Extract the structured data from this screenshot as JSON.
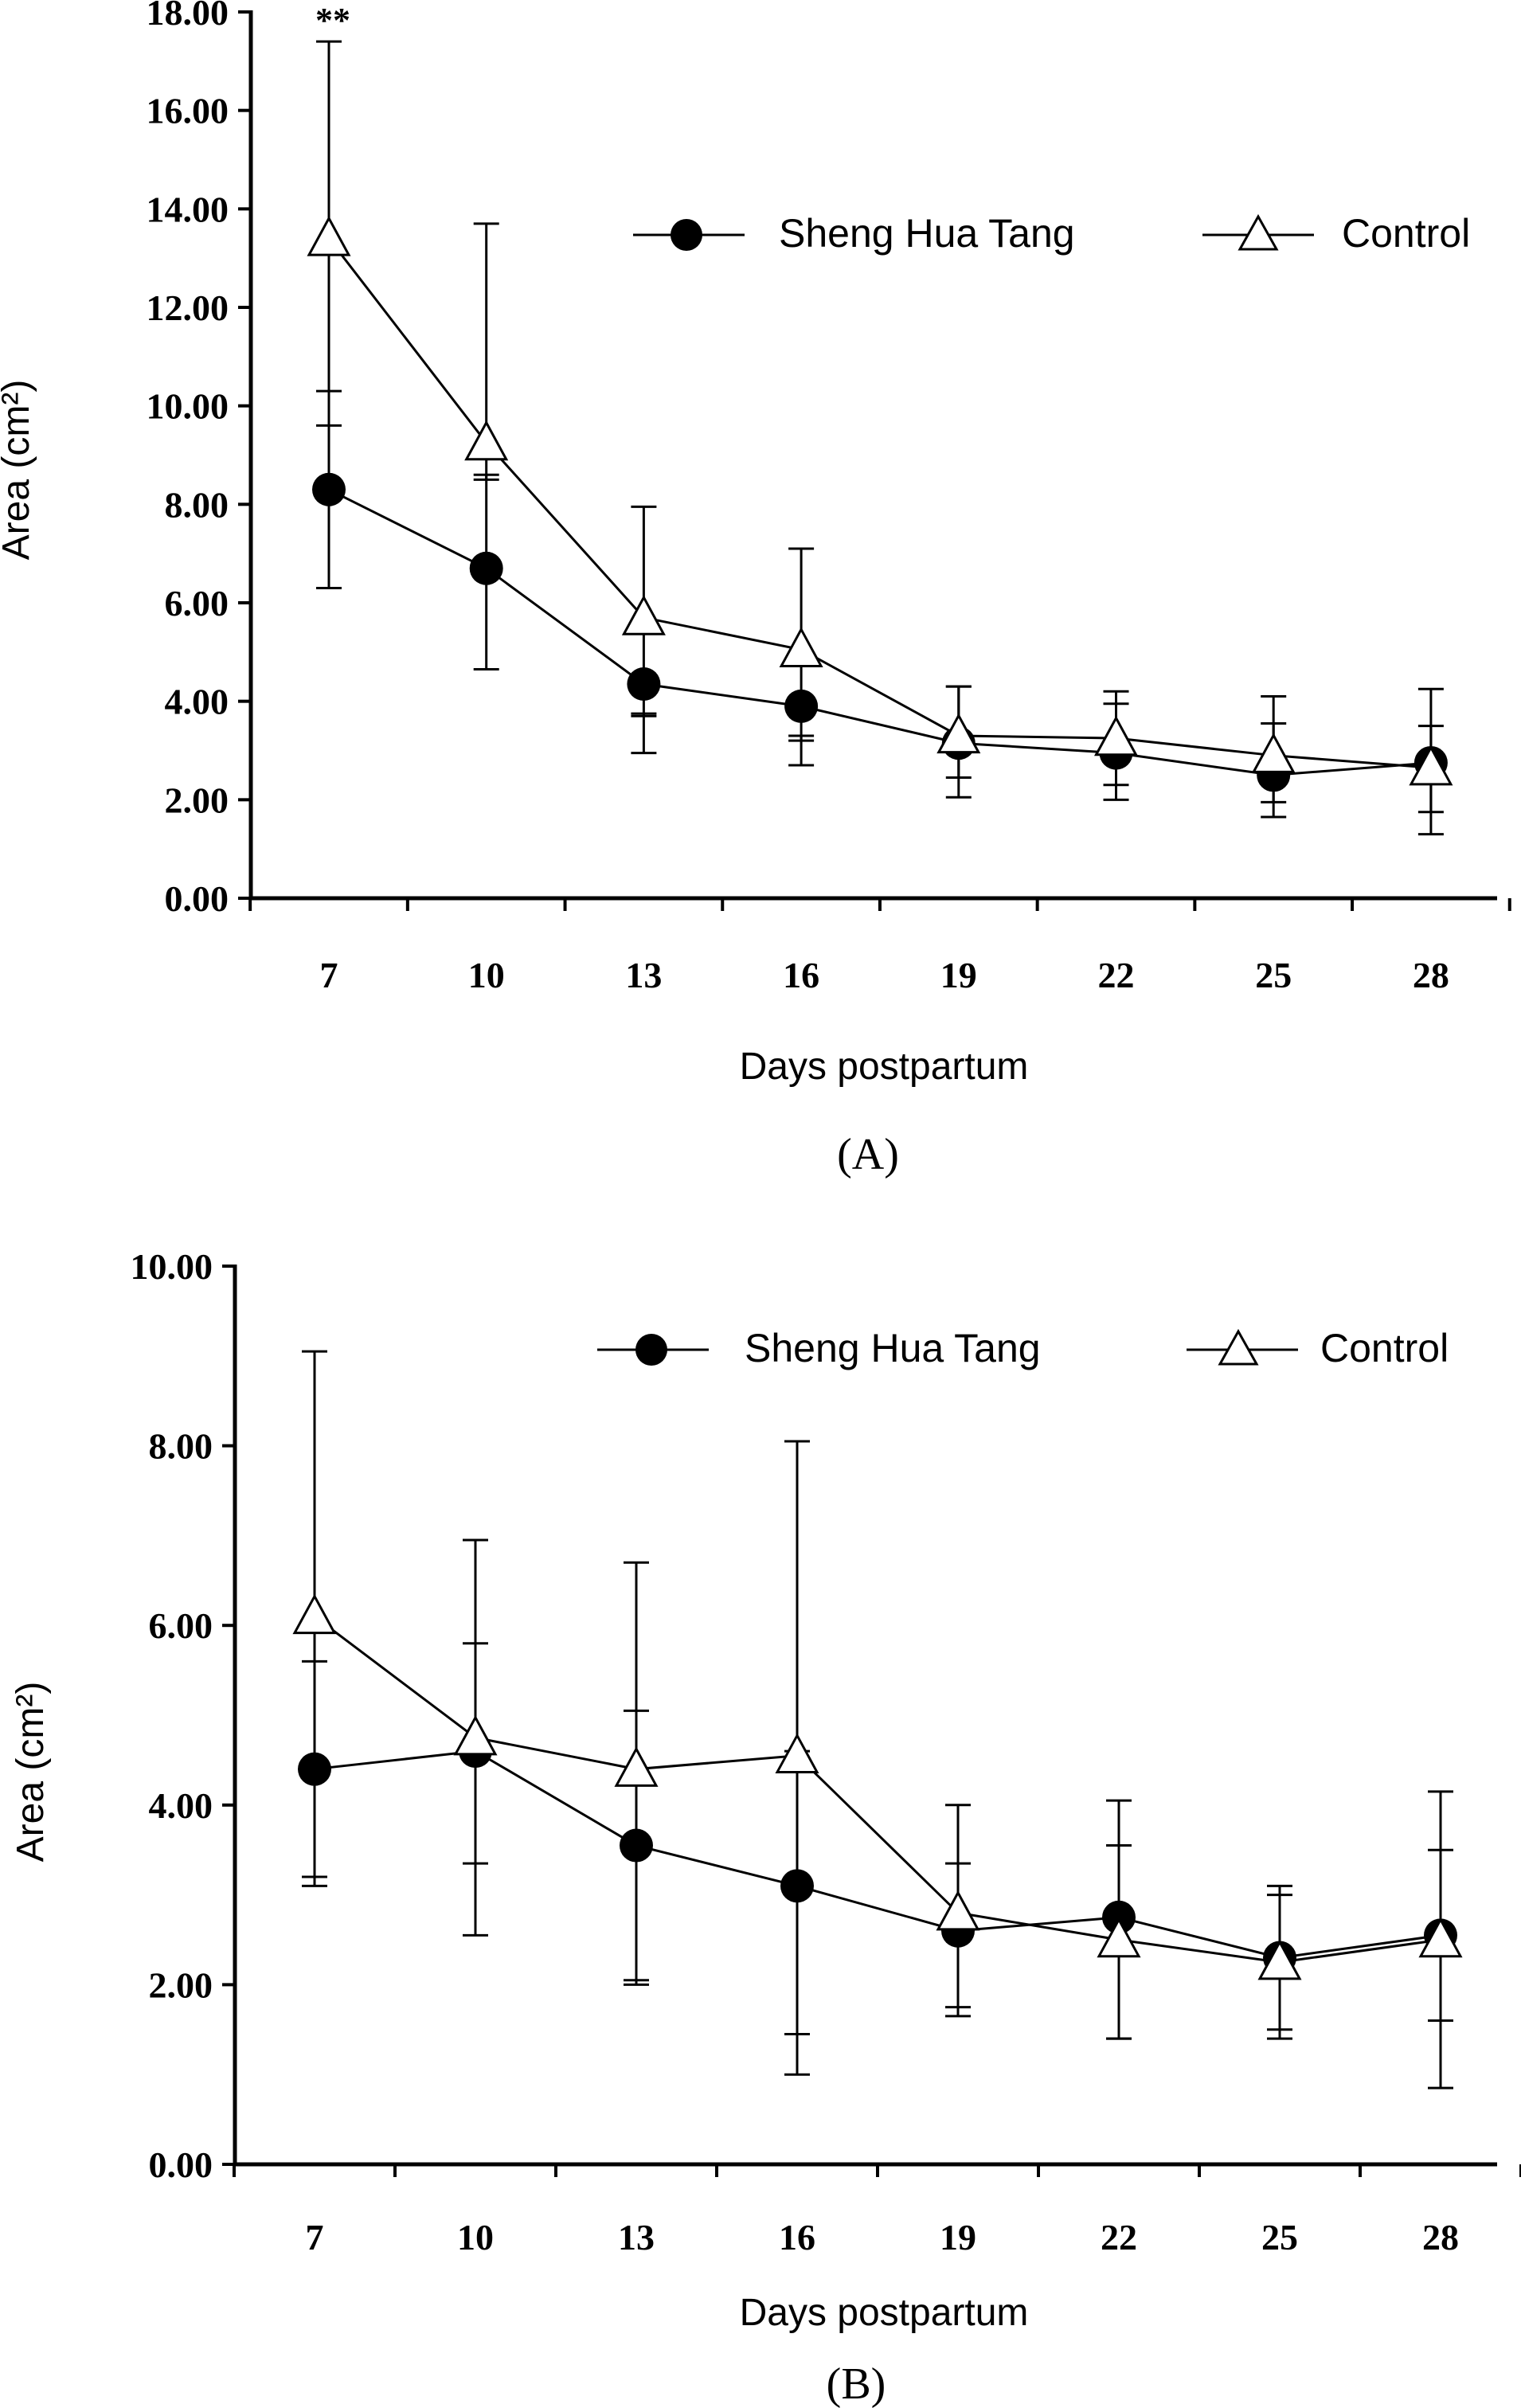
{
  "chart_data": [
    {
      "type": "line",
      "panel_label": "(A)",
      "xlabel": "Days postpartum",
      "ylabel": "Area (cm²)",
      "x": [
        7,
        10,
        13,
        16,
        19,
        22,
        25,
        28
      ],
      "y_ticks": [
        "0.00",
        "2.00",
        "4.00",
        "6.00",
        "8.00",
        "10.00",
        "12.00",
        "14.00",
        "16.00",
        "18.00"
      ],
      "ylim": [
        0,
        18
      ],
      "annotation": "**",
      "legend": [
        "Sheng Hua Tang",
        "Control"
      ],
      "series": [
        {
          "name": "Sheng Hua Tang",
          "marker": "filled-circle",
          "values": [
            8.3,
            6.7,
            4.35,
            3.9,
            3.15,
            2.95,
            2.5,
            2.75
          ],
          "err_low": [
            6.3,
            4.65,
            2.95,
            2.7,
            2.05,
            2.0,
            1.65,
            1.75
          ],
          "err_high": [
            10.3,
            8.6,
            3.75,
            3.3,
            4.3,
            3.95,
            3.55,
            3.5
          ]
        },
        {
          "name": "Control",
          "marker": "open-triangle",
          "values": [
            13.4,
            9.25,
            5.7,
            5.05,
            3.3,
            3.25,
            2.9,
            2.65
          ],
          "err_low": [
            9.6,
            8.5,
            3.7,
            3.2,
            2.45,
            2.3,
            1.95,
            1.3
          ],
          "err_high": [
            17.4,
            13.7,
            7.95,
            7.1,
            4.3,
            4.2,
            4.1,
            4.25
          ]
        }
      ]
    },
    {
      "type": "line",
      "panel_label": "(B)",
      "xlabel": "Days postpartum",
      "ylabel": "Area (cm²)",
      "x": [
        7,
        10,
        13,
        16,
        19,
        22,
        25,
        28
      ],
      "y_ticks": [
        "0.00",
        "2.00",
        "4.00",
        "6.00",
        "8.00",
        "10.00"
      ],
      "ylim": [
        0,
        10
      ],
      "legend": [
        "Sheng Hua Tang",
        "Control"
      ],
      "series": [
        {
          "name": "Sheng Hua Tang",
          "marker": "filled-circle",
          "values": [
            4.4,
            4.6,
            3.55,
            3.1,
            2.6,
            2.75,
            2.3,
            2.55
          ],
          "err_low": [
            3.2,
            3.35,
            2.05,
            1.45,
            1.65,
            1.4,
            1.5,
            1.6
          ],
          "err_high": [
            5.6,
            5.8,
            5.05,
            4.6,
            3.35,
            3.55,
            3.0,
            3.5
          ]
        },
        {
          "name": "Control",
          "marker": "open-triangle",
          "values": [
            6.1,
            4.75,
            4.4,
            4.55,
            2.8,
            2.5,
            2.25,
            2.5
          ],
          "err_low": [
            3.1,
            2.55,
            2.0,
            1.0,
            1.75,
            1.4,
            1.4,
            0.85
          ],
          "err_high": [
            9.05,
            6.95,
            6.7,
            8.05,
            4.0,
            4.05,
            3.1,
            4.15
          ]
        }
      ]
    }
  ]
}
